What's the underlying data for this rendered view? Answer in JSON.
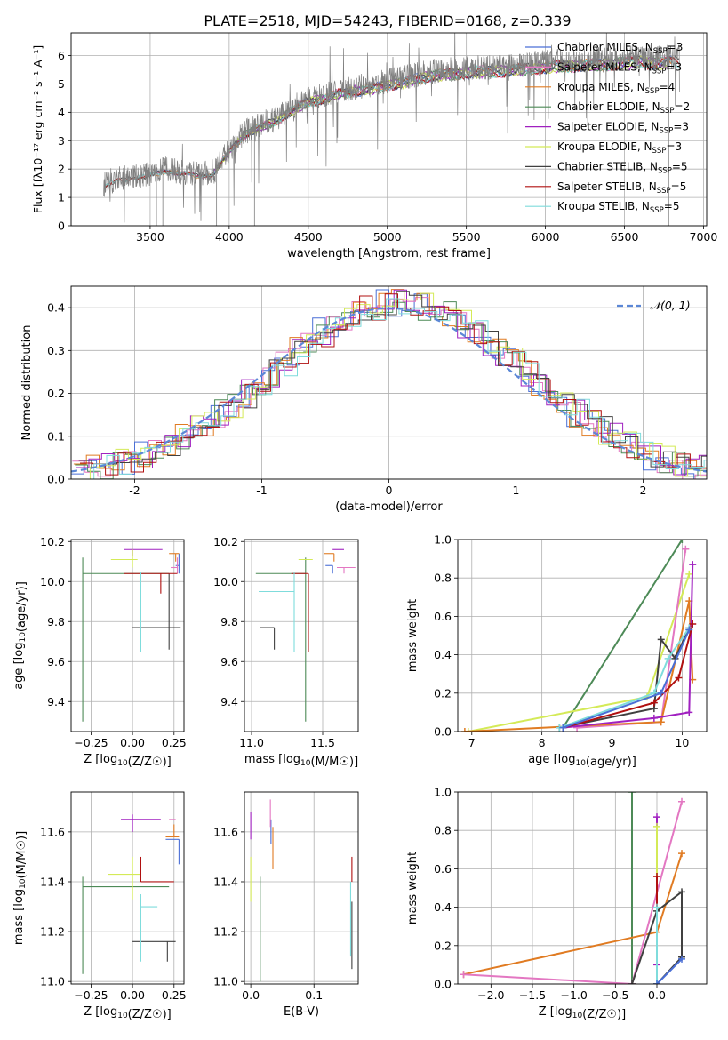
{
  "figure_title": "PLATE=2518, MJD=54243, FIBERID=0168, z=0.339",
  "colors": {
    "chabrier_miles": "#4a6fd6",
    "salpeter_miles": "#e377c2",
    "kroupa_miles": "#e07b22",
    "chabrier_elodie": "#4d8a57",
    "salpeter_elodie": "#a020c0",
    "kroupa_elodie": "#d4ea57",
    "chabrier_stelib": "#404040",
    "salpeter_stelib": "#b01010",
    "kroupa_stelib": "#7fdcdc",
    "data": "#808080",
    "normal": "#5b87d6",
    "grid": "#b0b0b0"
  },
  "chart_data": [
    {
      "id": "spectrum",
      "type": "line",
      "xlabel": "wavelength [Angstrom, rest frame]",
      "ylabel": "Flux [fλ10⁻¹⁷ erg cm⁻² s⁻¹ A⁻¹]",
      "xlim": [
        3000,
        7020
      ],
      "ylim": [
        0,
        6.8
      ],
      "xticks": [
        3500,
        4000,
        4500,
        5000,
        5500,
        6000,
        6500,
        7000
      ],
      "yticks": [
        0,
        1,
        2,
        3,
        4,
        5,
        6
      ],
      "data_wavelength": [
        3200,
        3300,
        3400,
        3500,
        3600,
        3700,
        3800,
        3900,
        4000,
        4100,
        4200,
        4300,
        4400,
        4500,
        4600,
        4700,
        4800,
        4900,
        5000,
        5100,
        5200,
        5300,
        5400,
        5500,
        5600,
        5700,
        5800,
        5900,
        6000,
        6100,
        6200,
        6300,
        6400,
        6500,
        6600,
        6700,
        6800
      ],
      "data_flux": [
        1.4,
        1.65,
        1.75,
        1.8,
        2.0,
        1.9,
        1.8,
        1.9,
        2.7,
        3.3,
        3.6,
        3.8,
        4.2,
        4.5,
        4.6,
        4.8,
        4.9,
        4.95,
        5.1,
        5.2,
        5.35,
        5.45,
        5.5,
        5.55,
        5.6,
        5.6,
        5.65,
        5.7,
        5.75,
        5.8,
        5.8,
        5.85,
        5.85,
        5.9,
        5.95,
        5.9,
        5.95
      ],
      "legend": [
        {
          "key": "chabrier_miles",
          "label": "Chabrier MILES, N",
          "n": "3"
        },
        {
          "key": "salpeter_miles",
          "label": "Salpeter MILES, N",
          "n": "3"
        },
        {
          "key": "kroupa_miles",
          "label": "Kroupa MILES, N",
          "n": "4"
        },
        {
          "key": "chabrier_elodie",
          "label": "Chabrier ELODIE, N",
          "n": "2"
        },
        {
          "key": "salpeter_elodie",
          "label": "Salpeter ELODIE, N",
          "n": "3"
        },
        {
          "key": "kroupa_elodie",
          "label": "Kroupa ELODIE, N",
          "n": "3"
        },
        {
          "key": "chabrier_stelib",
          "label": "Chabrier STELIB, N",
          "n": "5"
        },
        {
          "key": "salpeter_stelib",
          "label": "Salpeter STELIB, N",
          "n": "5"
        },
        {
          "key": "kroupa_stelib",
          "label": "Kroupa STELIB, N",
          "n": "5"
        }
      ],
      "legend_subscript": "SSP"
    },
    {
      "id": "residuals",
      "type": "histogram",
      "xlabel": "(data-model)/error",
      "ylabel": "Normed distribution",
      "xlim": [
        -2.5,
        2.5
      ],
      "ylim": [
        0,
        0.45
      ],
      "xticks": [
        -2,
        -1,
        0,
        1,
        2
      ],
      "yticks": [
        0.0,
        0.1,
        0.2,
        0.3,
        0.4
      ],
      "legend_label": "𝒩(0, 1)",
      "normal_curve": {
        "mu": 0,
        "sigma": 1
      }
    },
    {
      "id": "z_vs_age",
      "type": "errorbar",
      "xlabel": "Z [log10(Z/Z☉)]",
      "ylabel": "age  [log10(age/yr)]",
      "xlim": [
        -0.37,
        0.31
      ],
      "ylim": [
        9.25,
        10.21
      ],
      "xticks": [
        -0.25,
        0.0,
        0.25
      ],
      "xtick_labels": [
        "−0.25",
        "0.00",
        "0.25"
      ],
      "yticks": [
        9.4,
        9.6,
        9.8,
        10.0,
        10.2
      ],
      "points": [
        {
          "key": "chabrier_miles",
          "x": 0.28,
          "xerr": [
            0.02,
            0.0
          ],
          "y": 10.08,
          "yerr": [
            0.04,
            0.06
          ]
        },
        {
          "key": "salpeter_miles",
          "x": 0.27,
          "xerr": [
            0.04,
            0.0
          ],
          "y": 10.07,
          "yerr": [
            0.03,
            0.05
          ]
        },
        {
          "key": "kroupa_miles",
          "x": 0.26,
          "xerr": [
            0.04,
            0.02
          ],
          "y": 10.14,
          "yerr": [
            0.04,
            0.0
          ]
        },
        {
          "key": "chabrier_elodie",
          "x": -0.3,
          "xerr": [
            0.0,
            0.52
          ],
          "y": 10.04,
          "yerr": [
            0.74,
            0.08
          ]
        },
        {
          "key": "salpeter_elodie",
          "x": 0.0,
          "xerr": [
            0.05,
            0.18
          ],
          "y": 10.16,
          "yerr": [
            0.03,
            0.0
          ]
        },
        {
          "key": "kroupa_elodie",
          "x": 0.0,
          "xerr": [
            0.13,
            0.03
          ],
          "y": 10.11,
          "yerr": [
            0.04,
            0.05
          ]
        },
        {
          "key": "chabrier_stelib",
          "x": 0.22,
          "xerr": [
            0.22,
            0.07
          ],
          "y": 9.77,
          "yerr": [
            0.11,
            0.27
          ]
        },
        {
          "key": "salpeter_stelib",
          "x": 0.17,
          "xerr": [
            0.22,
            0.1
          ],
          "y": 10.04,
          "yerr": [
            0.1,
            0.0
          ]
        },
        {
          "key": "kroupa_stelib",
          "x": 0.05,
          "xerr": [
            0.0,
            0.0
          ],
          "y": 9.95,
          "yerr": [
            0.3,
            0.1
          ]
        }
      ]
    },
    {
      "id": "mass_vs_age",
      "type": "errorbar",
      "xlabel": "mass [log10(M/M☉)]",
      "ylabel": "",
      "xlim": [
        10.95,
        11.75
      ],
      "ylim": [
        9.25,
        10.21
      ],
      "xticks": [
        11.0,
        11.5
      ],
      "xtick_labels": [
        "11.0",
        "11.5"
      ],
      "yticks": [
        9.4,
        9.6,
        9.8,
        10.0,
        10.2
      ],
      "points": [
        {
          "key": "chabrier_miles",
          "x": 11.57,
          "xerr": [
            0.05,
            0.0
          ],
          "y": 10.08,
          "yerr": [
            0.04,
            0.0
          ]
        },
        {
          "key": "salpeter_miles",
          "x": 11.65,
          "xerr": [
            0.05,
            0.08
          ],
          "y": 10.07,
          "yerr": [
            0.03,
            0.0
          ]
        },
        {
          "key": "kroupa_miles",
          "x": 11.58,
          "xerr": [
            0.07,
            0.0
          ],
          "y": 10.14,
          "yerr": [
            0.04,
            0.0
          ]
        },
        {
          "key": "chabrier_elodie",
          "x": 11.38,
          "xerr": [
            0.35,
            0.0
          ],
          "y": 10.04,
          "yerr": [
            0.74,
            0.08
          ]
        },
        {
          "key": "salpeter_elodie",
          "x": 11.65,
          "xerr": [
            0.08,
            0.0
          ],
          "y": 10.16,
          "yerr": [
            0.0,
            0.0
          ]
        },
        {
          "key": "kroupa_elodie",
          "x": 11.43,
          "xerr": [
            0.1,
            0.0
          ],
          "y": 10.11,
          "yerr": [
            0.0,
            0.0
          ]
        },
        {
          "key": "chabrier_stelib",
          "x": 11.16,
          "xerr": [
            0.1,
            0.0
          ],
          "y": 9.77,
          "yerr": [
            0.11,
            0.0
          ]
        },
        {
          "key": "salpeter_stelib",
          "x": 11.4,
          "xerr": [
            0.12,
            0.0
          ],
          "y": 10.04,
          "yerr": [
            0.39,
            0.0
          ]
        },
        {
          "key": "kroupa_stelib",
          "x": 11.3,
          "xerr": [
            0.25,
            0.0
          ],
          "y": 9.95,
          "yerr": [
            0.3,
            0.1
          ]
        }
      ]
    },
    {
      "id": "age_mass_weight",
      "type": "line",
      "xlabel": "age  [log10(age/yr)]",
      "ylabel": "mass weight",
      "xlim": [
        6.8,
        10.35
      ],
      "ylim": [
        0.0,
        1.0
      ],
      "xticks": [
        7,
        8,
        9,
        10
      ],
      "yticks": [
        0.0,
        0.2,
        0.4,
        0.6,
        0.8,
        1.0
      ],
      "series": [
        {
          "key": "chabrier_elodie",
          "x": [
            8.3,
            10.0
          ],
          "y": [
            0.02,
            1.0
          ]
        },
        {
          "key": "kroupa_elodie",
          "x": [
            6.95,
            9.5,
            10.1
          ],
          "y": [
            0.0,
            0.18,
            0.82
          ]
        },
        {
          "key": "salpeter_miles",
          "x": [
            8.5,
            9.7,
            10.05
          ],
          "y": [
            0.02,
            0.05,
            0.95
          ]
        },
        {
          "key": "kroupa_miles",
          "x": [
            6.9,
            9.7,
            10.1,
            10.15
          ],
          "y": [
            0.0,
            0.05,
            0.68,
            0.27
          ]
        },
        {
          "key": "salpeter_elodie",
          "x": [
            8.3,
            9.6,
            10.1,
            10.15
          ],
          "y": [
            0.02,
            0.07,
            0.1,
            0.87
          ]
        },
        {
          "key": "chabrier_stelib",
          "x": [
            8.25,
            9.6,
            9.7,
            9.9,
            10.1
          ],
          "y": [
            0.02,
            0.12,
            0.48,
            0.38,
            0.54
          ]
        },
        {
          "key": "salpeter_stelib",
          "x": [
            8.3,
            9.6,
            9.95,
            10.15
          ],
          "y": [
            0.02,
            0.15,
            0.28,
            0.56
          ]
        },
        {
          "key": "kroupa_stelib",
          "x": [
            8.25,
            9.6,
            9.8,
            10.1
          ],
          "y": [
            0.02,
            0.2,
            0.38,
            0.54
          ]
        },
        {
          "key": "chabrier_miles",
          "x": [
            8.3,
            9.7,
            10.1
          ],
          "y": [
            0.02,
            0.2,
            0.53
          ]
        }
      ]
    },
    {
      "id": "z_vs_mass",
      "type": "errorbar",
      "xlabel": "Z [log10(Z/Z☉)]",
      "ylabel": "mass [log10(M/M☉)]",
      "xlim": [
        -0.37,
        0.31
      ],
      "ylim": [
        10.99,
        11.76
      ],
      "xticks": [
        -0.25,
        0.0,
        0.25
      ],
      "xtick_labels": [
        "−0.25",
        "0.00",
        "0.25"
      ],
      "yticks": [
        11.0,
        11.2,
        11.4,
        11.6
      ],
      "points": [
        {
          "key": "chabrier_miles",
          "x": 0.28,
          "xerr": [
            0.08,
            0.0
          ],
          "y": 11.57,
          "yerr": [
            0.1,
            0.0
          ]
        },
        {
          "key": "salpeter_miles",
          "x": 0.26,
          "xerr": [
            0.04,
            0.0
          ],
          "y": 11.65,
          "yerr": [
            0.0,
            0.0
          ]
        },
        {
          "key": "kroupa_miles",
          "x": 0.25,
          "xerr": [
            0.05,
            0.03
          ],
          "y": 11.58,
          "yerr": [
            0.0,
            0.05
          ]
        },
        {
          "key": "chabrier_elodie",
          "x": -0.3,
          "xerr": [
            0.0,
            0.52
          ],
          "y": 11.38,
          "yerr": [
            0.35,
            0.04
          ]
        },
        {
          "key": "salpeter_elodie",
          "x": 0.0,
          "xerr": [
            0.07,
            0.17
          ],
          "y": 11.65,
          "yerr": [
            0.05,
            0.02
          ]
        },
        {
          "key": "kroupa_elodie",
          "x": 0.0,
          "xerr": [
            0.15,
            0.05
          ],
          "y": 11.43,
          "yerr": [
            0.1,
            0.07
          ]
        },
        {
          "key": "chabrier_stelib",
          "x": 0.21,
          "xerr": [
            0.21,
            0.05
          ],
          "y": 11.16,
          "yerr": [
            0.08,
            0.0
          ]
        },
        {
          "key": "salpeter_stelib",
          "x": 0.05,
          "xerr": [
            0.0,
            0.2
          ],
          "y": 11.4,
          "yerr": [
            0.0,
            0.1
          ]
        },
        {
          "key": "kroupa_stelib",
          "x": 0.05,
          "xerr": [
            0.0,
            0.1
          ],
          "y": 11.3,
          "yerr": [
            0.22,
            0.05
          ]
        }
      ]
    },
    {
      "id": "ebv_vs_mass",
      "type": "errorbar",
      "xlabel": "E(B-V)",
      "ylabel": "",
      "xlim": [
        -0.01,
        0.17
      ],
      "ylim": [
        10.99,
        11.76
      ],
      "xticks": [
        0.0,
        0.1
      ],
      "xtick_labels": [
        "0.0",
        "0.1"
      ],
      "yticks": [
        11.0,
        11.2,
        11.4,
        11.6
      ],
      "points": [
        {
          "key": "chabrier_miles",
          "x": 0.032,
          "xerr": [
            0,
            0
          ],
          "y": 11.6,
          "yerr": [
            0.05,
            0.05
          ]
        },
        {
          "key": "salpeter_miles",
          "x": 0.031,
          "xerr": [
            0,
            0
          ],
          "y": 11.65,
          "yerr": [
            0.03,
            0.08
          ]
        },
        {
          "key": "kroupa_miles",
          "x": 0.035,
          "xerr": [
            0,
            0
          ],
          "y": 11.55,
          "yerr": [
            0.1,
            0.07
          ]
        },
        {
          "key": "chabrier_elodie",
          "x": 0.015,
          "xerr": [
            0,
            0
          ],
          "y": 11.2,
          "yerr": [
            0.2,
            0.22
          ]
        },
        {
          "key": "salpeter_elodie",
          "x": 0.0,
          "xerr": [
            0,
            0
          ],
          "y": 11.62,
          "yerr": [
            0.05,
            0.06
          ]
        },
        {
          "key": "kroupa_elodie",
          "x": 0.0,
          "xerr": [
            0,
            0
          ],
          "y": 11.42,
          "yerr": [
            0.1,
            0.08
          ]
        },
        {
          "key": "chabrier_stelib",
          "x": 0.16,
          "xerr": [
            0,
            0
          ],
          "y": 11.2,
          "yerr": [
            0.15,
            0.12
          ]
        },
        {
          "key": "salpeter_stelib",
          "x": 0.16,
          "xerr": [
            0,
            0
          ],
          "y": 11.4,
          "yerr": [
            0.0,
            0.1
          ]
        },
        {
          "key": "kroupa_stelib",
          "x": 0.158,
          "xerr": [
            0,
            0
          ],
          "y": 11.3,
          "yerr": [
            0.2,
            0.1
          ]
        }
      ]
    },
    {
      "id": "z_mass_weight",
      "type": "line",
      "xlabel": "Z [log10(Z/Z☉)]",
      "ylabel": "mass weight",
      "xlim": [
        -2.4,
        0.6
      ],
      "ylim": [
        0.0,
        1.0
      ],
      "xticks": [
        -2.0,
        -1.5,
        -1.0,
        -0.5,
        0.0
      ],
      "xtick_labels": [
        "−2.0",
        "−1.5",
        "−1.0",
        "−0.5",
        "0.0"
      ],
      "yticks": [
        0.0,
        0.2,
        0.4,
        0.6,
        0.8,
        1.0
      ],
      "series": [
        {
          "key": "chabrier_elodie",
          "x": [
            -0.3,
            -0.3
          ],
          "y": [
            0.0,
            1.0
          ]
        },
        {
          "key": "kroupa_miles",
          "x": [
            -2.33,
            0.0,
            0.3
          ],
          "y": [
            0.05,
            0.27,
            0.68
          ]
        },
        {
          "key": "salpeter_miles",
          "x": [
            -2.33,
            -0.3,
            0.3
          ],
          "y": [
            0.05,
            0.0,
            0.95
          ]
        },
        {
          "key": "salpeter_elodie",
          "x": [
            0.0,
            0.0,
            0.0
          ],
          "y": [
            0.0,
            0.1,
            0.87
          ]
        },
        {
          "key": "kroupa_elodie",
          "x": [
            0.0,
            0.0
          ],
          "y": [
            0.0,
            0.82
          ]
        },
        {
          "key": "chabrier_stelib",
          "x": [
            -0.3,
            0.0,
            0.3,
            0.3,
            0.0
          ],
          "y": [
            0.0,
            0.38,
            0.48,
            0.14,
            0.0
          ]
        },
        {
          "key": "salpeter_stelib",
          "x": [
            0.0,
            0.0
          ],
          "y": [
            0.0,
            0.56
          ]
        },
        {
          "key": "kroupa_stelib",
          "x": [
            0.0,
            0.0
          ],
          "y": [
            0.0,
            0.4
          ]
        },
        {
          "key": "chabrier_miles",
          "x": [
            0.0,
            0.3
          ],
          "y": [
            0.0,
            0.13
          ]
        }
      ]
    }
  ]
}
